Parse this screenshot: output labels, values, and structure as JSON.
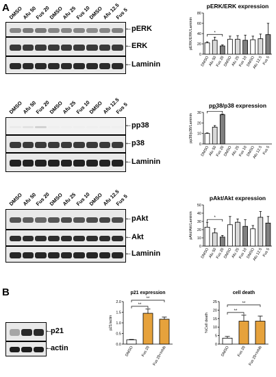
{
  "panels": {
    "a": "A",
    "b": "B"
  },
  "blots": [
    {
      "lanes": [
        "DMSO",
        "Afu 50",
        "Fus 20",
        "DMSO",
        "Afu 25",
        "Fus 10",
        "DMSO",
        "Afu 12.5",
        "Fus 5"
      ],
      "bands": [
        "pERK",
        "ERK",
        "Laminin"
      ]
    },
    {
      "lanes": [
        "DMSO",
        "Afu 50",
        "Fus 20",
        "DMSO",
        "Afu 25",
        "Fus 10",
        "DMSO",
        "Afu 12.5",
        "Fus 5"
      ],
      "bands": [
        "pp38",
        "p38",
        "Laminin"
      ]
    },
    {
      "lanes": [
        "DMSO",
        "Afu 50",
        "Fus 20",
        "DMSO",
        "Afu 25",
        "Fus 10",
        "DMSO",
        "Afu 12.5",
        "Fus 5"
      ],
      "bands": [
        "pAkt",
        "Akt",
        "Laminin"
      ]
    },
    {
      "lanes": [],
      "bands": [
        "p21",
        "actin"
      ]
    }
  ],
  "chart_data": [
    {
      "type": "bar",
      "title": "pERK/ERK expression",
      "ylabel": "pERK/ERK/Laminin",
      "categories": [
        "DMSO",
        "Afu 50",
        "Fus 20",
        "DMSO",
        "Afu 25",
        "Fus 10",
        "DMSO",
        "Afu 12.5",
        "Fus 5"
      ],
      "values": [
        22,
        27,
        16,
        29,
        29,
        27,
        28,
        30,
        38
      ],
      "errors": [
        2,
        6,
        2,
        6,
        7,
        10,
        7,
        9,
        22
      ],
      "colors": [
        "#ffffff",
        "#d9d9d9",
        "#808080",
        "#ffffff",
        "#d9d9d9",
        "#808080",
        "#ffffff",
        "#d9d9d9",
        "#808080"
      ],
      "ylim": [
        0,
        80
      ],
      "yticks": [
        "0",
        "20",
        "40",
        "60",
        "80"
      ],
      "significance": [
        {
          "from": 0,
          "to": 2,
          "label": "*"
        }
      ]
    },
    {
      "type": "bar",
      "title": "pp38/p38 expression",
      "ylabel": "pp38/p38/Laminin",
      "categories": [
        "DMSO",
        "Afu 50",
        "Fus 20",
        "DMSO",
        "Afu 25",
        "Fus 10",
        "DMSO",
        "Afu 12.5",
        "Fus 5"
      ],
      "values": [
        10,
        16,
        28,
        0,
        0,
        0,
        0,
        0,
        0
      ],
      "errors": [
        0.5,
        1.5,
        0.5,
        0,
        0,
        0,
        0,
        0,
        0
      ],
      "colors": [
        "#ffffff",
        "#d9d9d9",
        "#808080",
        "#ffffff",
        "#d9d9d9",
        "#808080",
        "#ffffff",
        "#d9d9d9",
        "#808080"
      ],
      "ylim": [
        0,
        30
      ],
      "yticks": [
        "0",
        "10",
        "20",
        "30"
      ],
      "significance": [
        {
          "from": 0,
          "to": 2,
          "label": "***"
        }
      ]
    },
    {
      "type": "bar",
      "title": "pAkt/Akt expression",
      "ylabel": "pAkt/Akt/Laminin",
      "categories": [
        "DMSO",
        "Afu 50",
        "Fus 20",
        "DMSO",
        "Afu 25",
        "Fus 10",
        "DMSO",
        "Afu 12.5",
        "Fus 5"
      ],
      "values": [
        23,
        16,
        11,
        26,
        29,
        24,
        21,
        35,
        28
      ],
      "errors": [
        6,
        5,
        2,
        10,
        4,
        8,
        4,
        7,
        8
      ],
      "colors": [
        "#ffffff",
        "#d9d9d9",
        "#808080",
        "#ffffff",
        "#d9d9d9",
        "#808080",
        "#ffffff",
        "#d9d9d9",
        "#808080"
      ],
      "ylim": [
        0,
        50
      ],
      "yticks": [
        "0",
        "10",
        "20",
        "30",
        "40",
        "50"
      ],
      "significance": [
        {
          "from": 0,
          "to": 2,
          "label": "*"
        }
      ]
    },
    {
      "type": "bar",
      "title": "p21 expression",
      "ylabel": "p21/actin",
      "categories": [
        "DMSO",
        "Fus 20",
        "Fus 20+Inhib"
      ],
      "values": [
        0.2,
        1.45,
        1.17
      ],
      "errors": [
        0.02,
        0.2,
        0.1
      ],
      "colors": [
        "#ffffff",
        "#e6a23c",
        "#e6a23c"
      ],
      "ylim": [
        0,
        2.0
      ],
      "yticks": [
        "0.0",
        "0.5",
        "1.0",
        "1.5",
        "2.0"
      ],
      "significance": [
        {
          "from": 0,
          "to": 1,
          "label": "**"
        },
        {
          "from": 0,
          "to": 2,
          "label": "**"
        }
      ]
    },
    {
      "type": "bar",
      "title": "cell death",
      "ylabel": "%Cell death",
      "categories": [
        "DMSO",
        "Fus 20",
        "Fus 20+Inhib"
      ],
      "values": [
        3.5,
        13.5,
        13.5
      ],
      "errors": [
        1,
        3.5,
        3
      ],
      "colors": [
        "#ffffff",
        "#e6a23c",
        "#e6a23c"
      ],
      "ylim": [
        0,
        25
      ],
      "yticks": [
        "0",
        "5",
        "10",
        "15",
        "20",
        "25"
      ],
      "significance": [
        {
          "from": 0,
          "to": 1,
          "label": "**"
        },
        {
          "from": 0,
          "to": 2,
          "label": "**"
        }
      ]
    }
  ]
}
